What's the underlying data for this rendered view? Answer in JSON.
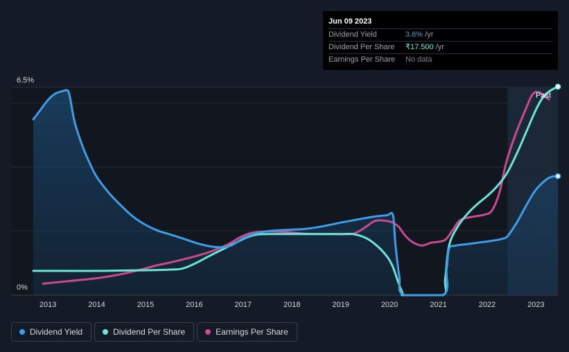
{
  "chart_data": {
    "type": "line",
    "title": "",
    "ylabel": "",
    "xlabel": "",
    "y_tick_labels": [
      "6.5%",
      "0%"
    ],
    "x_tick_labels": [
      "2013",
      "2014",
      "2015",
      "2016",
      "2017",
      "2018",
      "2019",
      "2020",
      "2021",
      "2022",
      "2023"
    ],
    "ylim": [
      0,
      6.5
    ],
    "xlim": [
      2012.7,
      2023.45
    ],
    "past_label": "Past",
    "past_region_start": 2022.42,
    "series": [
      {
        "name": "Dividend Yield",
        "color": "#3d9ee8",
        "filled": true,
        "points": [
          [
            2012.7,
            5.5
          ],
          [
            2012.85,
            5.8
          ],
          [
            2013.0,
            6.1
          ],
          [
            2013.15,
            6.3
          ],
          [
            2013.3,
            6.38
          ],
          [
            2013.4,
            6.4
          ],
          [
            2013.45,
            6.2
          ],
          [
            2013.55,
            5.4
          ],
          [
            2013.7,
            4.7
          ],
          [
            2013.85,
            4.15
          ],
          [
            2014.0,
            3.7
          ],
          [
            2014.25,
            3.2
          ],
          [
            2014.5,
            2.8
          ],
          [
            2014.75,
            2.45
          ],
          [
            2015.0,
            2.2
          ],
          [
            2015.25,
            2.02
          ],
          [
            2015.5,
            1.9
          ],
          [
            2015.75,
            1.78
          ],
          [
            2016.0,
            1.65
          ],
          [
            2016.25,
            1.55
          ],
          [
            2016.5,
            1.5
          ],
          [
            2016.75,
            1.55
          ],
          [
            2017.0,
            1.78
          ],
          [
            2017.25,
            1.93
          ],
          [
            2017.5,
            2.0
          ],
          [
            2017.75,
            2.03
          ],
          [
            2018.0,
            2.05
          ],
          [
            2018.25,
            2.07
          ],
          [
            2018.5,
            2.12
          ],
          [
            2018.75,
            2.19
          ],
          [
            2019.0,
            2.27
          ],
          [
            2019.25,
            2.34
          ],
          [
            2019.5,
            2.41
          ],
          [
            2019.75,
            2.47
          ],
          [
            2019.95,
            2.5
          ],
          [
            2020.07,
            2.5
          ],
          [
            2020.12,
            1.6
          ],
          [
            2020.2,
            0.6
          ],
          [
            2020.3,
            0.0
          ],
          [
            2021.1,
            0.0
          ],
          [
            2021.17,
            0.8
          ],
          [
            2021.22,
            1.45
          ],
          [
            2021.35,
            1.55
          ],
          [
            2021.6,
            1.6
          ],
          [
            2021.85,
            1.65
          ],
          [
            2022.1,
            1.7
          ],
          [
            2022.3,
            1.76
          ],
          [
            2022.42,
            1.85
          ],
          [
            2022.6,
            2.25
          ],
          [
            2022.8,
            2.8
          ],
          [
            2023.0,
            3.3
          ],
          [
            2023.2,
            3.6
          ],
          [
            2023.32,
            3.7
          ],
          [
            2023.45,
            3.72
          ]
        ],
        "end_marker": true
      },
      {
        "name": "Dividend Per Share",
        "color": "#6ce5d8",
        "filled": false,
        "points": [
          [
            2012.7,
            0.76
          ],
          [
            2013.0,
            0.76
          ],
          [
            2014.0,
            0.76
          ],
          [
            2015.0,
            0.78
          ],
          [
            2015.5,
            0.8
          ],
          [
            2015.75,
            0.83
          ],
          [
            2016.0,
            0.98
          ],
          [
            2016.3,
            1.22
          ],
          [
            2016.6,
            1.45
          ],
          [
            2016.9,
            1.68
          ],
          [
            2017.1,
            1.82
          ],
          [
            2017.3,
            1.9
          ],
          [
            2017.5,
            1.91
          ],
          [
            2018.0,
            1.91
          ],
          [
            2018.5,
            1.91
          ],
          [
            2019.0,
            1.91
          ],
          [
            2019.25,
            1.91
          ],
          [
            2019.5,
            1.8
          ],
          [
            2019.7,
            1.6
          ],
          [
            2019.9,
            1.3
          ],
          [
            2020.05,
            0.95
          ],
          [
            2020.18,
            0.4
          ],
          [
            2020.28,
            0.02
          ],
          [
            2020.32,
            0.0
          ],
          [
            2021.08,
            0.0
          ],
          [
            2021.14,
            0.5
          ],
          [
            2021.22,
            1.55
          ],
          [
            2021.4,
            2.15
          ],
          [
            2021.6,
            2.55
          ],
          [
            2021.8,
            2.85
          ],
          [
            2022.0,
            3.1
          ],
          [
            2022.2,
            3.4
          ],
          [
            2022.4,
            3.8
          ],
          [
            2022.6,
            4.4
          ],
          [
            2022.8,
            5.1
          ],
          [
            2023.0,
            5.8
          ],
          [
            2023.15,
            6.2
          ],
          [
            2023.3,
            6.4
          ],
          [
            2023.45,
            6.52
          ]
        ],
        "end_marker": true
      },
      {
        "name": "Earnings Per Share",
        "color": "#c94b8f",
        "filled": false,
        "points": [
          [
            2012.9,
            0.36
          ],
          [
            2013.3,
            0.42
          ],
          [
            2013.7,
            0.48
          ],
          [
            2014.0,
            0.53
          ],
          [
            2014.3,
            0.6
          ],
          [
            2014.6,
            0.69
          ],
          [
            2014.9,
            0.8
          ],
          [
            2015.2,
            0.92
          ],
          [
            2015.5,
            1.02
          ],
          [
            2015.8,
            1.13
          ],
          [
            2016.1,
            1.25
          ],
          [
            2016.4,
            1.4
          ],
          [
            2016.7,
            1.6
          ],
          [
            2016.95,
            1.82
          ],
          [
            2017.15,
            1.94
          ],
          [
            2017.4,
            1.99
          ],
          [
            2017.7,
            1.99
          ],
          [
            2018.0,
            1.96
          ],
          [
            2018.3,
            1.92
          ],
          [
            2018.6,
            1.91
          ],
          [
            2018.9,
            1.91
          ],
          [
            2019.2,
            1.91
          ],
          [
            2019.35,
            1.98
          ],
          [
            2019.5,
            2.12
          ],
          [
            2019.7,
            2.32
          ],
          [
            2019.9,
            2.33
          ],
          [
            2020.05,
            2.28
          ],
          [
            2020.18,
            2.15
          ],
          [
            2020.3,
            1.9
          ],
          [
            2020.45,
            1.68
          ],
          [
            2020.6,
            1.57
          ],
          [
            2020.7,
            1.56
          ],
          [
            2020.85,
            1.64
          ],
          [
            2021.0,
            1.67
          ],
          [
            2021.15,
            1.74
          ],
          [
            2021.3,
            2.05
          ],
          [
            2021.45,
            2.35
          ],
          [
            2021.7,
            2.45
          ],
          [
            2021.95,
            2.52
          ],
          [
            2022.1,
            2.65
          ],
          [
            2022.25,
            3.2
          ],
          [
            2022.4,
            4.2
          ],
          [
            2022.6,
            5.1
          ],
          [
            2022.8,
            5.85
          ],
          [
            2022.93,
            6.28
          ],
          [
            2023.05,
            6.35
          ],
          [
            2023.15,
            6.25
          ],
          [
            2023.27,
            6.12
          ]
        ],
        "end_marker": false
      }
    ]
  },
  "tooltip": {
    "date": "Jun 09 2023",
    "rows": [
      {
        "label": "Dividend Yield",
        "value": "3.6%",
        "unit": " /yr"
      },
      {
        "label": "Dividend Per Share",
        "value": "₹17.500",
        "unit": " /yr"
      },
      {
        "label": "Earnings Per Share",
        "value": "No data",
        "unit": ""
      }
    ]
  },
  "legend": [
    {
      "label": "Dividend Yield",
      "color": "#3d9ee8"
    },
    {
      "label": "Dividend Per Share",
      "color": "#6ce5d8"
    },
    {
      "label": "Earnings Per Share",
      "color": "#c94b8f"
    }
  ]
}
